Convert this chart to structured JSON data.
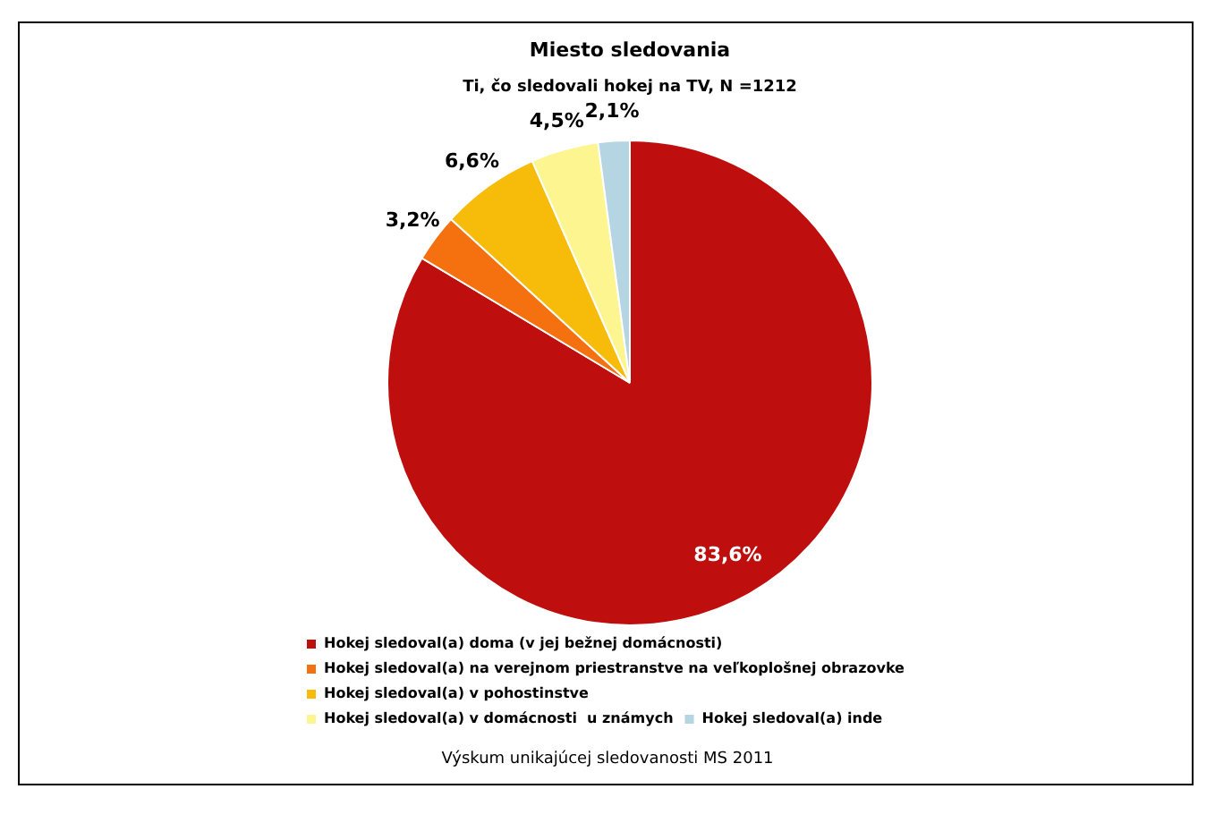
{
  "chart_data": {
    "type": "pie",
    "title": "Miesto sledovania",
    "subtitle": "Ti, čo sledovali hokej na TV, N =1212",
    "categories": [
      "Hokej sledoval(a) doma (v jej bežnej domácnosti)",
      "Hokej sledoval(a) na verejnom priestranstve na veľkoplošnej obrazovke",
      "Hokej sledoval(a) v pohostinstve",
      "Hokej sledoval(a) v domácnosti  u známych",
      "Hokej sledoval(a) inde"
    ],
    "values": [
      83.6,
      3.2,
      6.6,
      4.5,
      2.1
    ],
    "value_labels": [
      "83,6%",
      "3,2%",
      "6,6%",
      "4,5%",
      "2,1%"
    ],
    "colors": [
      "#be0e0e",
      "#f5700f",
      "#f7bb0a",
      "#fdf590",
      "#b6d5e2"
    ],
    "legend": "bottom",
    "annotations": [
      "Výskum unikajúcej sledovanosti MS 2011"
    ]
  }
}
